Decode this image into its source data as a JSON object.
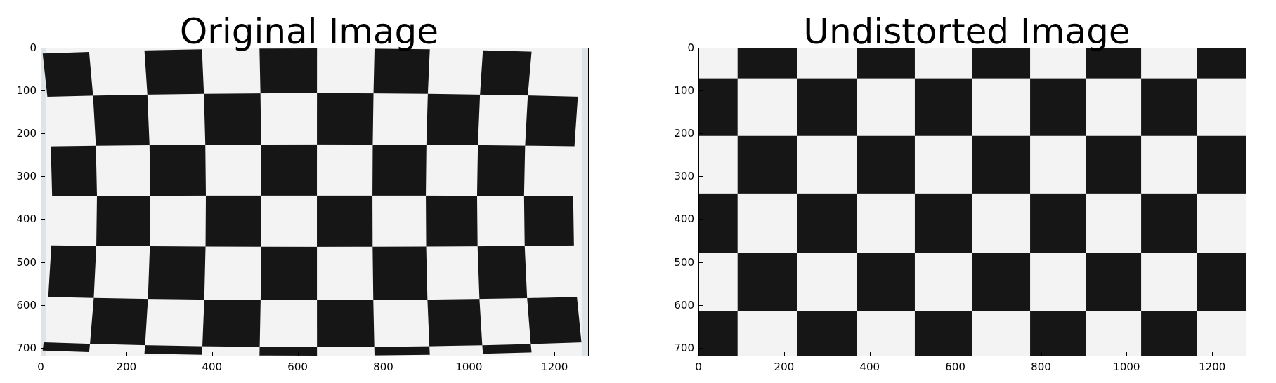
{
  "panels": [
    {
      "title": "Original Image",
      "image_description_name": "distorted-checkerboard",
      "xticks": [
        "0",
        "200",
        "400",
        "600",
        "800",
        "1000",
        "1200"
      ],
      "yticks": [
        "0",
        "100",
        "200",
        "300",
        "400",
        "500",
        "600",
        "700"
      ],
      "xlim": [
        0,
        1280
      ],
      "ylim": [
        720,
        0
      ]
    },
    {
      "title": "Undistorted Image",
      "image_description_name": "undistorted-checkerboard",
      "xticks": [
        "0",
        "200",
        "400",
        "600",
        "800",
        "1000",
        "1200"
      ],
      "yticks": [
        "0",
        "100",
        "200",
        "300",
        "400",
        "500",
        "600",
        "700"
      ],
      "xlim": [
        0,
        1280
      ],
      "ylim": [
        720,
        0
      ]
    }
  ],
  "colors": {
    "dark_square": "#161616",
    "light_square": "#f3f3f3",
    "background": "#ffffff"
  }
}
